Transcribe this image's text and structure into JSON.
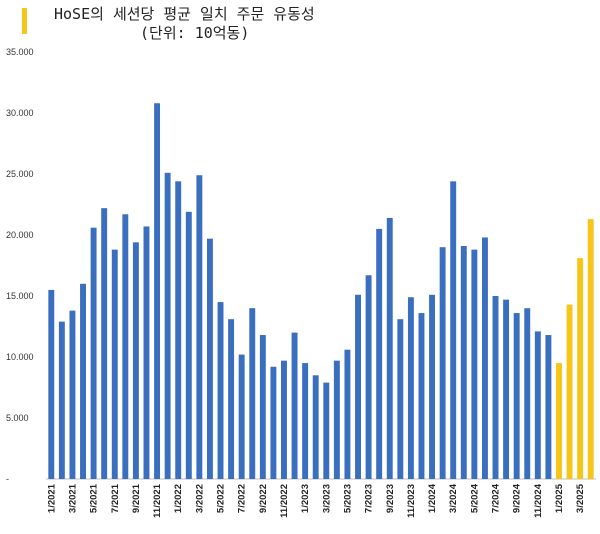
{
  "header": {
    "accent_color": "#F5C518",
    "title": "HoSE의 세션당 평균 일치 주문 유동성",
    "subtitle": "(단위: 10억동)"
  },
  "chart_data": {
    "type": "bar",
    "title": "HoSE의 세션당 평균 일치 주문 유동성",
    "subtitle": "(단위: 10억동)",
    "xlabel": "",
    "ylabel": "",
    "ylim": [
      0,
      35000
    ],
    "y_ticks": [
      0,
      5000,
      10000,
      15000,
      20000,
      25000,
      30000,
      35000
    ],
    "y_tick_labels": [
      "-",
      "5.000",
      "10.000",
      "15.000",
      "20.000",
      "25.000",
      "30.000",
      "35.000"
    ],
    "grid": false,
    "legend": "none",
    "colors": {
      "default": "#3A6EBE",
      "highlight": "#F5C518"
    },
    "categories": [
      "1/2021",
      "2/2021",
      "3/2021",
      "4/2021",
      "5/2021",
      "6/2021",
      "7/2021",
      "8/2021",
      "9/2021",
      "10/2021",
      "11/2021",
      "12/2021",
      "1/2022",
      "2/2022",
      "3/2022",
      "4/2022",
      "5/2022",
      "6/2022",
      "7/2022",
      "8/2022",
      "9/2022",
      "10/2022",
      "11/2022",
      "12/2022",
      "1/2023",
      "2/2023",
      "3/2023",
      "4/2023",
      "5/2023",
      "6/2023",
      "7/2023",
      "8/2023",
      "9/2023",
      "10/2023",
      "11/2023",
      "12/2023",
      "1/2024",
      "2/2024",
      "3/2024",
      "4/2024",
      "5/2024",
      "6/2024",
      "7/2024",
      "8/2024",
      "9/2024",
      "10/2024",
      "11/2024",
      "12/2024",
      "1/2025",
      "2/2025",
      "3/2025",
      "4/2025"
    ],
    "x_tick_labels": [
      "1/2021",
      "3/2021",
      "5/2021",
      "7/2021",
      "9/2021",
      "11/2021",
      "1/2022",
      "3/2022",
      "5/2022",
      "7/2022",
      "9/2022",
      "11/2022",
      "1/2023",
      "3/2023",
      "5/2023",
      "7/2023",
      "9/2023",
      "11/2023",
      "1/2024",
      "3/2024",
      "5/2024",
      "7/2024",
      "9/2024",
      "11/2024",
      "1/2025",
      "3/2025"
    ],
    "values": [
      15500,
      12900,
      13800,
      16000,
      20600,
      22200,
      18800,
      21700,
      19400,
      20700,
      30800,
      25100,
      24400,
      21900,
      24900,
      19700,
      14500,
      13100,
      10200,
      14000,
      11800,
      9200,
      9700,
      12000,
      9500,
      8500,
      7900,
      9700,
      10600,
      15100,
      16700,
      20500,
      21400,
      13100,
      14900,
      13600,
      15100,
      19000,
      24400,
      19100,
      18800,
      19800,
      15000,
      14700,
      13600,
      14000,
      12100,
      11800,
      9500,
      14300,
      18100,
      21300
    ],
    "highlight_from": "1/2025"
  }
}
